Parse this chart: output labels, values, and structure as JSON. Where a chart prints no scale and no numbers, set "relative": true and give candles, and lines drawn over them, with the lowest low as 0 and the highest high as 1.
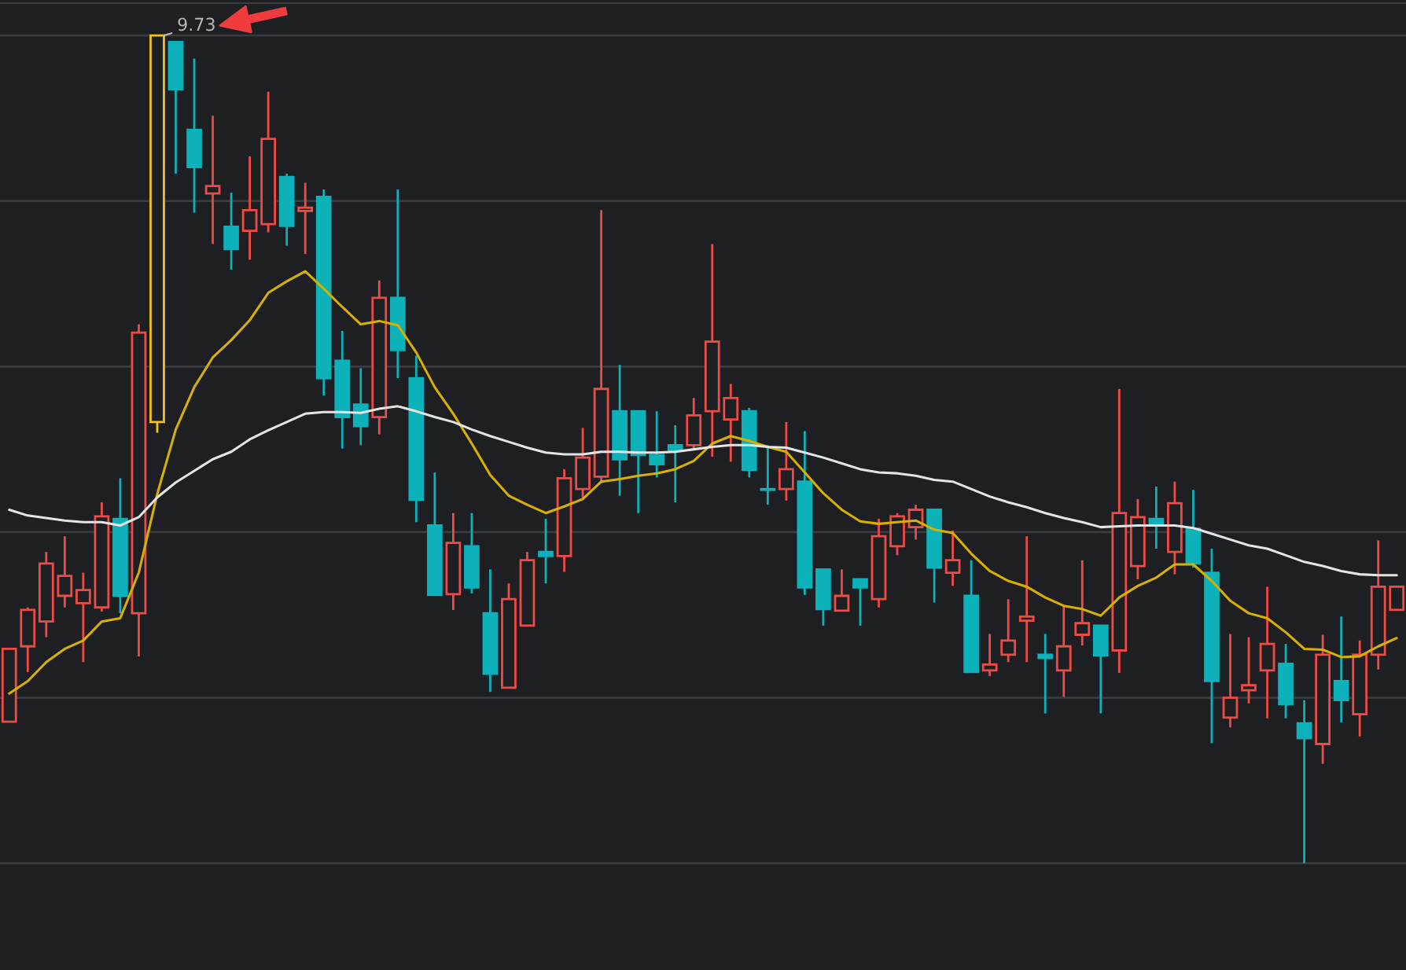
{
  "chart_data": {
    "type": "candlestick",
    "relative": true,
    "grid": "y",
    "categories": [
      null,
      null,
      null,
      null,
      null,
      null,
      null,
      null,
      null,
      null,
      null,
      null,
      null,
      null,
      null,
      null,
      null,
      null,
      null,
      null,
      null,
      null,
      null,
      null,
      null,
      null,
      null,
      null,
      null,
      null,
      null,
      null,
      null,
      null,
      null,
      null,
      null,
      null,
      null,
      null,
      null,
      null,
      null,
      null,
      null,
      null,
      null,
      null,
      null,
      null,
      null,
      null,
      null,
      null,
      null,
      null,
      null,
      null,
      null,
      null,
      null,
      null,
      null,
      null,
      null,
      null,
      null,
      null,
      null,
      null,
      null,
      null,
      null,
      null,
      null,
      null
    ],
    "ohlc": [
      [
        0.171,
        0.26,
        0.171,
        0.259
      ],
      [
        0.262,
        0.309,
        0.231,
        0.306
      ],
      [
        0.292,
        0.376,
        0.273,
        0.362
      ],
      [
        0.323,
        0.395,
        0.309,
        0.347
      ],
      [
        0.314,
        0.351,
        0.243,
        0.33
      ],
      [
        0.309,
        0.436,
        0.304,
        0.419
      ],
      [
        0.416,
        0.465,
        0.302,
        0.323
      ],
      [
        0.302,
        0.651,
        0.25,
        0.641
      ],
      [
        0.533,
        1,
        0.52,
        1
      ],
      [
        0.992,
        0.992,
        0.833,
        0.935
      ],
      [
        0.886,
        0.972,
        0.786,
        0.841
      ],
      [
        0.809,
        0.903,
        0.748,
        0.818
      ],
      [
        0.769,
        0.81,
        0.717,
        0.742
      ],
      [
        0.764,
        0.854,
        0.729,
        0.789
      ],
      [
        0.772,
        0.932,
        0.762,
        0.875
      ],
      [
        0.829,
        0.833,
        0.746,
        0.77
      ],
      [
        0.788,
        0.822,
        0.736,
        0.792
      ],
      [
        0.805,
        0.814,
        0.565,
        0.586
      ],
      [
        0.607,
        0.643,
        0.501,
        0.539
      ],
      [
        0.554,
        0.598,
        0.505,
        0.528
      ],
      [
        0.539,
        0.704,
        0.518,
        0.683
      ],
      [
        0.683,
        0.814,
        0.586,
        0.62
      ],
      [
        0.586,
        0.613,
        0.412,
        0.439
      ],
      [
        0.408,
        0.472,
        0.323,
        0.324
      ],
      [
        0.325,
        0.423,
        0.306,
        0.387
      ],
      [
        0.383,
        0.423,
        0.326,
        0.333
      ],
      [
        0.302,
        0.355,
        0.207,
        0.229
      ],
      [
        0.212,
        0.338,
        0.212,
        0.319
      ],
      [
        0.287,
        0.376,
        0.287,
        0.366
      ],
      [
        0.376,
        0.416,
        0.338,
        0.371
      ],
      [
        0.371,
        0.476,
        0.352,
        0.465
      ],
      [
        0.452,
        0.526,
        0.44,
        0.49
      ],
      [
        0.467,
        0.789,
        0.459,
        0.573
      ],
      [
        0.546,
        0.602,
        0.444,
        0.488
      ],
      [
        0.546,
        0.546,
        0.423,
        0.493
      ],
      [
        0.493,
        0.546,
        0.466,
        0.482
      ],
      [
        0.505,
        0.529,
        0.436,
        0.499
      ],
      [
        0.505,
        0.562,
        0.501,
        0.541
      ],
      [
        0.546,
        0.748,
        0.491,
        0.63
      ],
      [
        0.536,
        0.579,
        0.485,
        0.562
      ],
      [
        0.546,
        0.55,
        0.466,
        0.475
      ],
      [
        0.452,
        0.505,
        0.433,
        0.451
      ],
      [
        0.452,
        0.533,
        0.438,
        0.476
      ],
      [
        0.461,
        0.522,
        0.324,
        0.333
      ],
      [
        0.355,
        0.355,
        0.287,
        0.307
      ],
      [
        0.305,
        0.355,
        0.304,
        0.323
      ],
      [
        0.343,
        0.343,
        0.287,
        0.333
      ],
      [
        0.319,
        0.416,
        0.309,
        0.395
      ],
      [
        0.383,
        0.423,
        0.372,
        0.419
      ],
      [
        0.406,
        0.433,
        0.391,
        0.427
      ],
      [
        0.427,
        0.427,
        0.315,
        0.357
      ],
      [
        0.351,
        0.402,
        0.335,
        0.366
      ],
      [
        0.323,
        0.366,
        0.231,
        0.231
      ],
      [
        0.233,
        0.277,
        0.226,
        0.24
      ],
      [
        0.252,
        0.319,
        0.243,
        0.269
      ],
      [
        0.293,
        0.395,
        0.243,
        0.298
      ],
      [
        0.252,
        0.277,
        0.181,
        0.248
      ],
      [
        0.233,
        0.311,
        0.201,
        0.262
      ],
      [
        0.276,
        0.366,
        0.263,
        0.29
      ],
      [
        0.287,
        0.287,
        0.181,
        0.251
      ],
      [
        0.257,
        0.573,
        0.23,
        0.423
      ],
      [
        0.359,
        0.44,
        0.343,
        0.418
      ],
      [
        0.416,
        0.455,
        0.38,
        0.41
      ],
      [
        0.376,
        0.461,
        0.349,
        0.435
      ],
      [
        0.404,
        0.451,
        0.357,
        0.362
      ],
      [
        0.351,
        0.38,
        0.145,
        0.22
      ],
      [
        0.176,
        0.277,
        0.164,
        0.2
      ],
      [
        0.209,
        0.273,
        0.193,
        0.215
      ],
      [
        0.233,
        0.334,
        0.175,
        0.265
      ],
      [
        0.241,
        0.265,
        0.175,
        0.192
      ],
      [
        0.169,
        0.197,
        0,
        0.151
      ],
      [
        0.144,
        0.276,
        0.12,
        0.252
      ],
      [
        0.22,
        0.298,
        0.17,
        0.197
      ],
      [
        0.18,
        0.269,
        0.153,
        0.252
      ],
      [
        0.252,
        0.39,
        0.234,
        0.334
      ],
      [
        0.306,
        0.334,
        0.306,
        0.334
      ]
    ],
    "colors": [
      "#ef4b45",
      "#ef4b45",
      "#ef4b45",
      "#ef4b45",
      "#ef4b45",
      "#ef4b45",
      "#0db1b9",
      "#ef4b45",
      "#f2c41a",
      "#0db1b9",
      "#0db1b9",
      "#ef4b45",
      "#0db1b9",
      "#ef4b45",
      "#ef4b45",
      "#0db1b9",
      "#ef4b45",
      "#0db1b9",
      "#0db1b9",
      "#0db1b9",
      "#ef4b45",
      "#0db1b9",
      "#0db1b9",
      "#0db1b9",
      "#ef4b45",
      "#0db1b9",
      "#0db1b9",
      "#ef4b45",
      "#ef4b45",
      "#0db1b9",
      "#ef4b45",
      "#ef4b45",
      "#ef4b45",
      "#0db1b9",
      "#0db1b9",
      "#0db1b9",
      "#0db1b9",
      "#ef4b45",
      "#ef4b45",
      "#ef4b45",
      "#0db1b9",
      "#0db1b9",
      "#ef4b45",
      "#0db1b9",
      "#0db1b9",
      "#ef4b45",
      "#0db1b9",
      "#ef4b45",
      "#ef4b45",
      "#ef4b45",
      "#0db1b9",
      "#ef4b45",
      "#0db1b9",
      "#ef4b45",
      "#ef4b45",
      "#ef4b45",
      "#0db1b9",
      "#ef4b45",
      "#ef4b45",
      "#0db1b9",
      "#ef4b45",
      "#ef4b45",
      "#0db1b9",
      "#ef4b45",
      "#0db1b9",
      "#0db1b9",
      "#ef4b45",
      "#ef4b45",
      "#ef4b45",
      "#0db1b9",
      "#0db1b9",
      "#ef4b45",
      "#0db1b9",
      "#ef4b45",
      "#ef4b45",
      "#ef4b45"
    ],
    "series": [
      {
        "type": "line",
        "color": "#d8b000",
        "values": [
          0.205,
          0.22,
          0.243,
          0.259,
          0.269,
          0.292,
          0.296,
          0.351,
          0.446,
          0.524,
          0.575,
          0.611,
          0.632,
          0.656,
          0.689,
          0.703,
          0.715,
          0.694,
          0.672,
          0.651,
          0.655,
          0.65,
          0.617,
          0.575,
          0.543,
          0.507,
          0.469,
          0.444,
          0.433,
          0.423,
          0.431,
          0.44,
          0.461,
          0.464,
          0.468,
          0.471,
          0.476,
          0.486,
          0.507,
          0.516,
          0.51,
          0.503,
          0.497,
          0.472,
          0.447,
          0.427,
          0.413,
          0.41,
          0.412,
          0.414,
          0.403,
          0.399,
          0.374,
          0.353,
          0.341,
          0.334,
          0.321,
          0.311,
          0.307,
          0.299,
          0.321,
          0.335,
          0.345,
          0.361,
          0.361,
          0.341,
          0.317,
          0.302,
          0.296,
          0.279,
          0.259,
          0.258,
          0.249,
          0.25,
          0.262,
          0.272
        ]
      },
      {
        "type": "line",
        "color": "#e4e4e4",
        "values": [
          0.427,
          0.42,
          0.417,
          0.414,
          0.412,
          0.412,
          0.408,
          0.418,
          0.442,
          0.46,
          0.474,
          0.488,
          0.497,
          0.512,
          0.523,
          0.533,
          0.543,
          0.545,
          0.545,
          0.544,
          0.549,
          0.552,
          0.546,
          0.539,
          0.533,
          0.524,
          0.516,
          0.509,
          0.502,
          0.496,
          0.494,
          0.494,
          0.497,
          0.497,
          0.496,
          0.496,
          0.497,
          0.5,
          0.503,
          0.505,
          0.505,
          0.503,
          0.502,
          0.496,
          0.49,
          0.483,
          0.476,
          0.472,
          0.471,
          0.468,
          0.463,
          0.461,
          0.452,
          0.443,
          0.436,
          0.43,
          0.423,
          0.417,
          0.412,
          0.406,
          0.407,
          0.408,
          0.408,
          0.408,
          0.405,
          0.398,
          0.391,
          0.384,
          0.38,
          0.372,
          0.364,
          0.359,
          0.353,
          0.349,
          0.348,
          0.348
        ]
      }
    ],
    "annotations": [
      "9.73"
    ]
  }
}
